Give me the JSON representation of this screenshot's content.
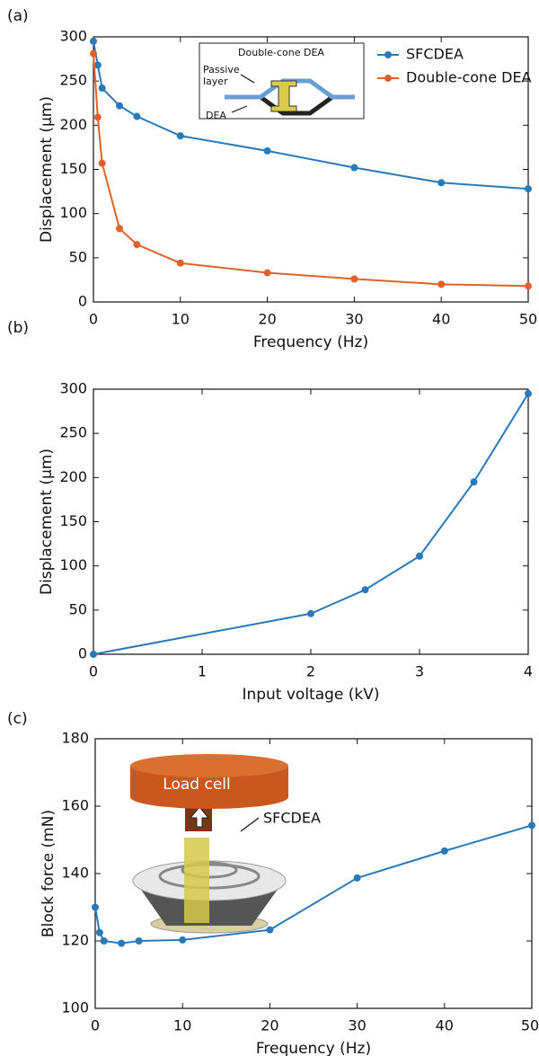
{
  "chart_data": [
    {
      "type": "line",
      "panel_label": "(a)",
      "x_label": "Frequency (Hz)",
      "y_label": "Displacement (μm)",
      "x": [
        0,
        0.5,
        1,
        3,
        5,
        10,
        20,
        30,
        40,
        50
      ],
      "series": [
        {
          "name": "SFCDEA",
          "color": "#2a7ab9",
          "values": [
            295,
            268,
            242,
            222,
            210,
            188,
            171,
            152,
            135,
            128
          ]
        },
        {
          "name": "Double-cone DEA",
          "color": "#e0622a",
          "values": [
            281,
            209,
            157,
            83,
            65,
            44,
            33,
            26,
            20,
            18
          ]
        }
      ],
      "xlim": [
        0,
        50
      ],
      "xticks": [
        0,
        10,
        20,
        30,
        40,
        50
      ],
      "ylim": [
        0,
        300
      ],
      "yticks": [
        0,
        50,
        100,
        150,
        200,
        250,
        300
      ],
      "legend": "upper right",
      "annotations": [
        "Double-cone DEA",
        "Passive",
        "layer",
        "DEA"
      ]
    },
    {
      "type": "line",
      "panel_label": "(b)",
      "x_label": "Input voltage (kV)",
      "y_label": "Displacement (μm)",
      "x": [
        0,
        2,
        2.5,
        3,
        3.5,
        4
      ],
      "series": [
        {
          "color": "#2a7ab9",
          "values": [
            0,
            46,
            73,
            111,
            195,
            295
          ]
        }
      ],
      "xlim": [
        0,
        4
      ],
      "xticks": [
        0,
        1,
        2,
        3,
        4
      ],
      "ylim": [
        0,
        300
      ],
      "yticks": [
        0,
        50,
        100,
        150,
        200,
        250,
        300
      ]
    },
    {
      "type": "line",
      "panel_label": "(c)",
      "x_label": "Frequency (Hz)",
      "y_label": "Block force (mN)",
      "x": [
        0,
        0.5,
        1,
        3,
        5,
        10,
        20,
        30,
        40,
        50
      ],
      "series": [
        {
          "color": "#2a7ab9",
          "values": [
            130,
            122.5,
            120,
            119.3,
            120,
            120.3,
            123.3,
            138.7,
            146.7,
            154.3
          ]
        }
      ],
      "xlim": [
        0,
        50
      ],
      "xticks": [
        0,
        10,
        20,
        30,
        40,
        50
      ],
      "ylim": [
        100,
        180
      ],
      "yticks": [
        100,
        120,
        140,
        160,
        180
      ],
      "annotations": [
        "Load cell",
        "SFCDEA"
      ]
    }
  ]
}
